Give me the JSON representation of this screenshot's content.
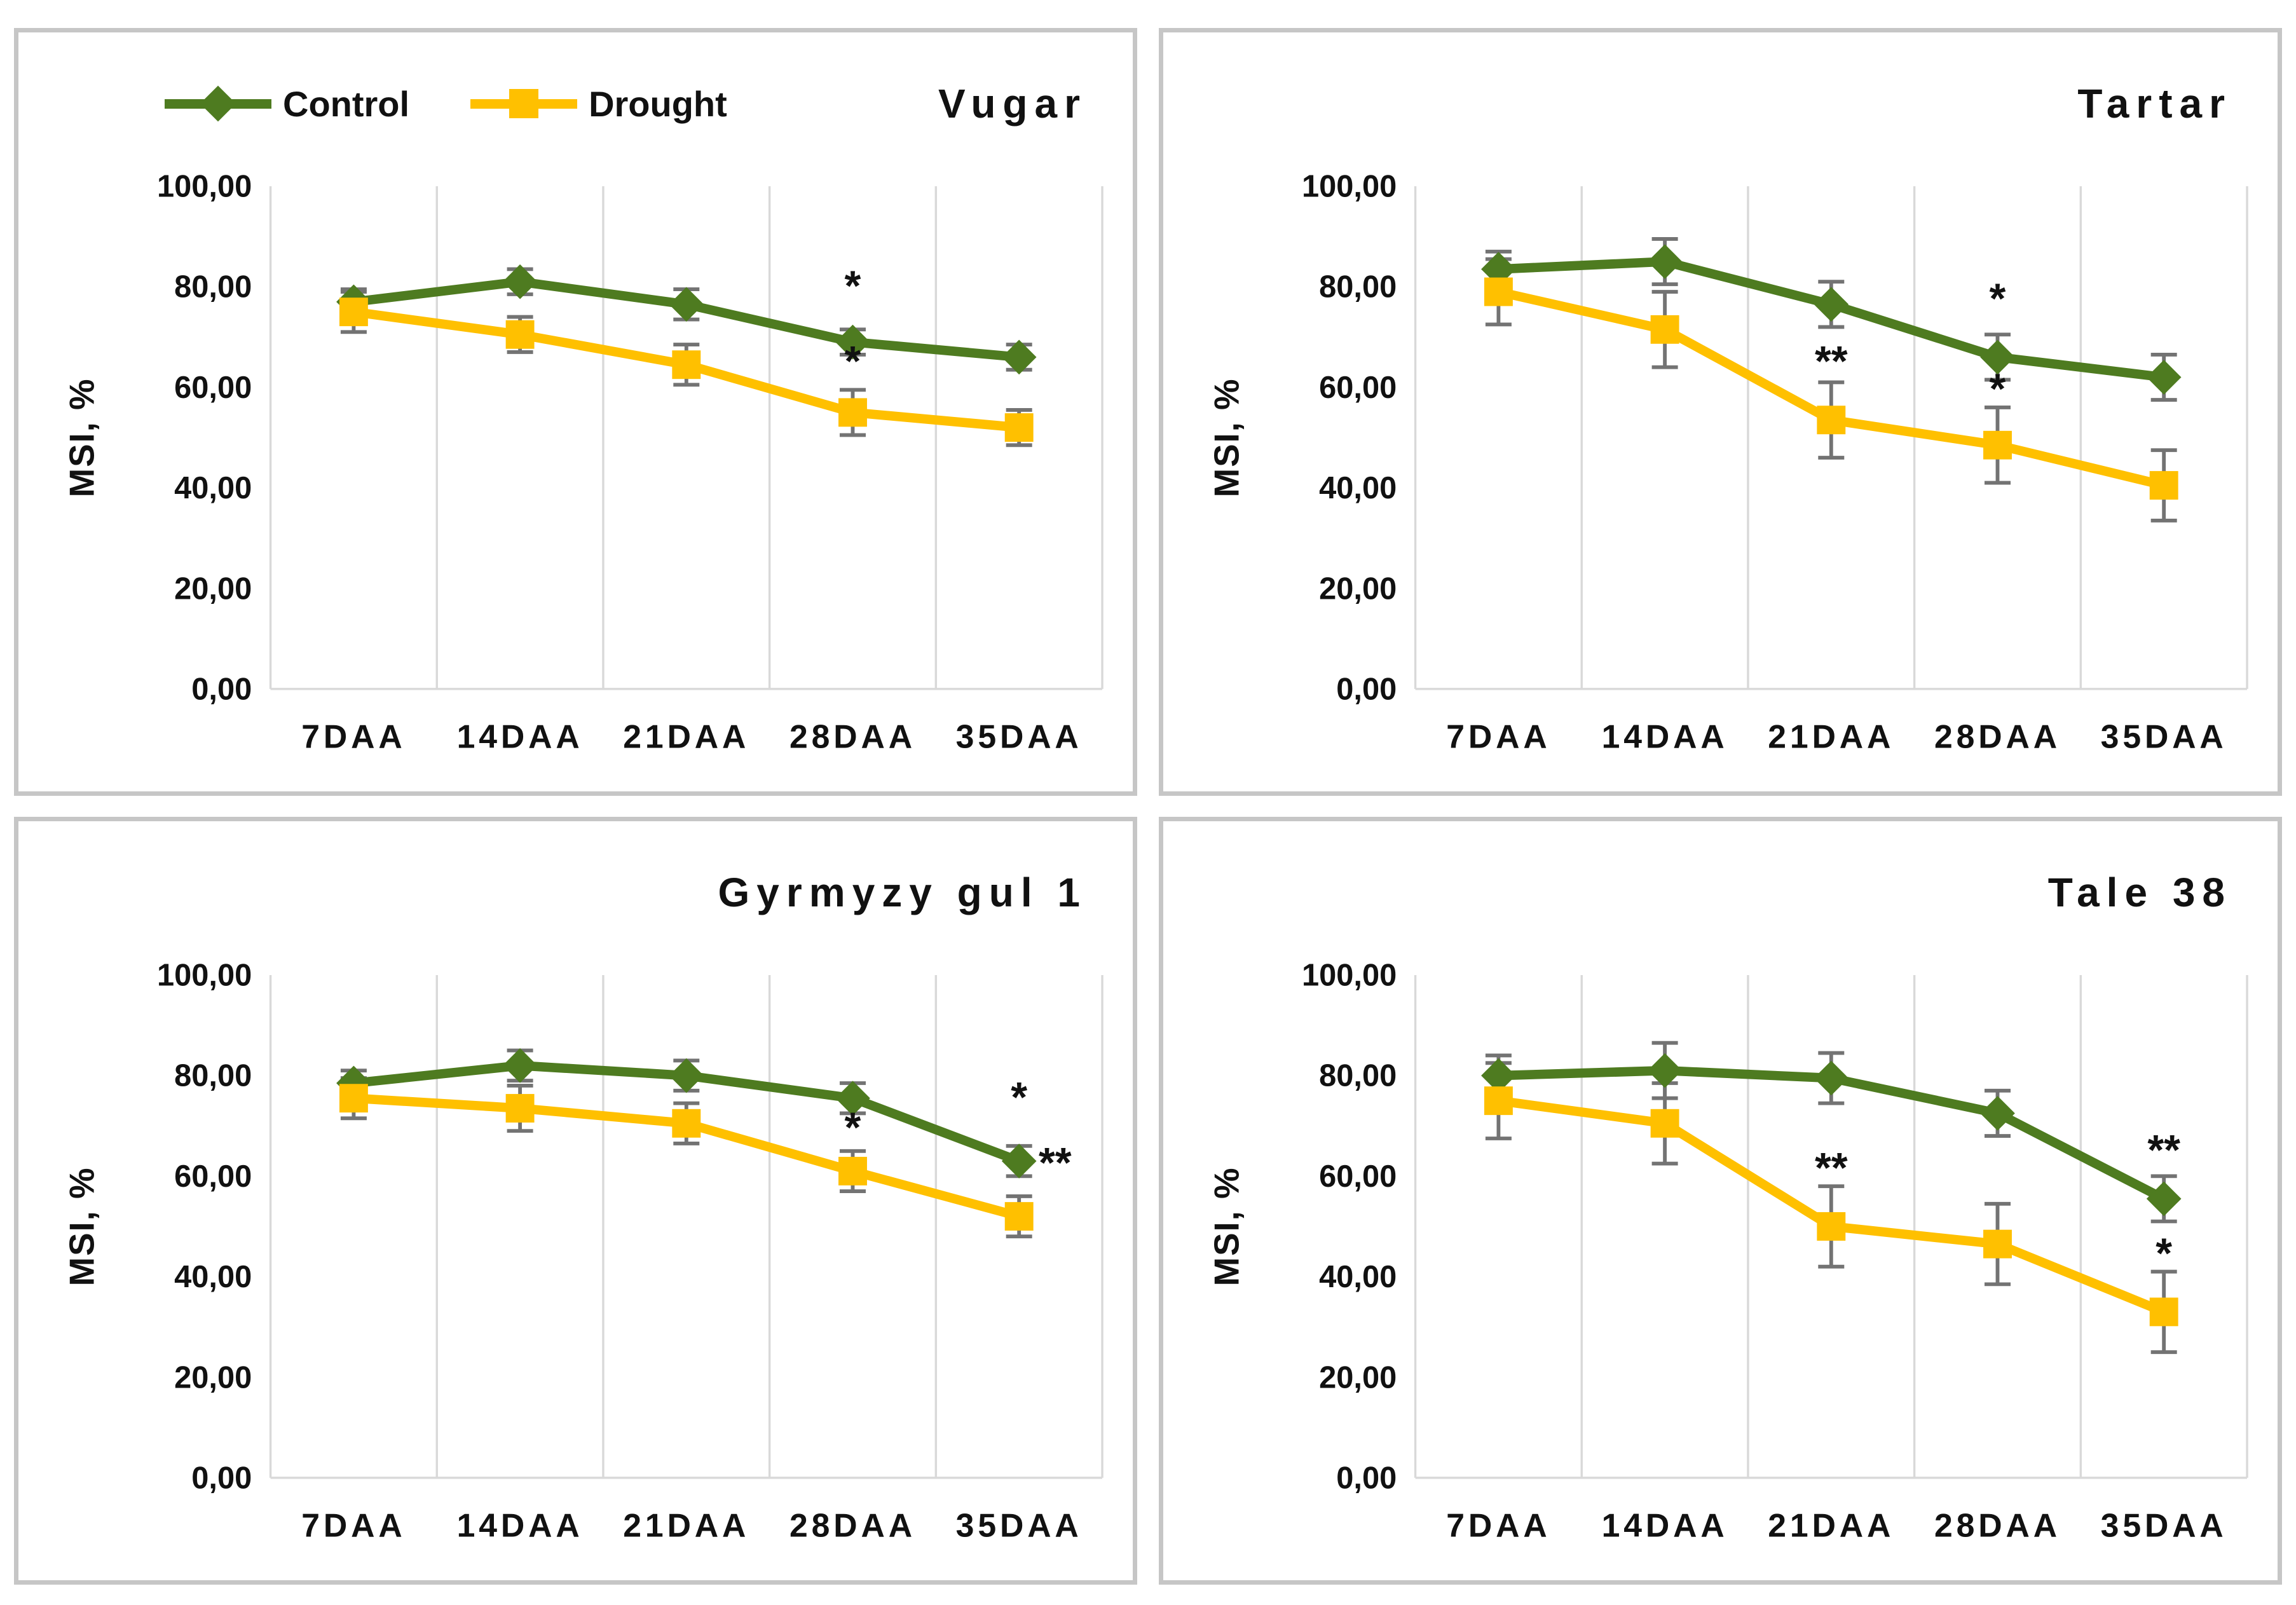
{
  "figure": {
    "background": "#ffffff",
    "panel_border_color": "#c6c6c6"
  },
  "colors": {
    "control": "#4e7b20",
    "drought": "#ffc000",
    "error_bar": "#737373",
    "gridline": "#d9d9d9",
    "text": "#111111"
  },
  "legend": {
    "items": [
      {
        "label": "Control",
        "marker": "diamond",
        "color": "#4e7b20"
      },
      {
        "label": "Drought",
        "marker": "square",
        "color": "#ffc000"
      }
    ]
  },
  "axis": {
    "y_label": "MSI, %",
    "y_tick_values": [
      0,
      20,
      40,
      60,
      80,
      100
    ],
    "y_tick_labels": [
      "0,00",
      "20,00",
      "40,00",
      "60,00",
      "80,00",
      "100,00"
    ],
    "x_categories": [
      "7DAA",
      "14DAA",
      "21DAA",
      "28DAA",
      "35DAA"
    ],
    "ylim": [
      0,
      100
    ],
    "grid": "vertical-only",
    "legend_position": "top-left-first-panel-only"
  },
  "chart_data": [
    {
      "type": "line",
      "title": "Vugar",
      "categories": [
        "7DAA",
        "14DAA",
        "21DAA",
        "28DAA",
        "35DAA"
      ],
      "ylim": [
        0,
        100
      ],
      "series": [
        {
          "name": "Control",
          "marker": "diamond",
          "color": "#4e7b20",
          "values": [
            77,
            81,
            76.5,
            69,
            66
          ],
          "errors": [
            2.5,
            2.5,
            3,
            2.5,
            2.5
          ]
        },
        {
          "name": "Drought",
          "marker": "square",
          "color": "#ffc000",
          "values": [
            75,
            70.5,
            64.5,
            55,
            52
          ],
          "errors": [
            4,
            3.5,
            4,
            4.5,
            3.5
          ]
        }
      ],
      "annotations": [
        {
          "x_index": 3,
          "y": 80.5,
          "text": "*",
          "dx": 0
        },
        {
          "x_index": 3,
          "y": 65.5,
          "text": "*",
          "dx": 0
        }
      ]
    },
    {
      "type": "line",
      "title": "Tartar",
      "categories": [
        "7DAA",
        "14DAA",
        "21DAA",
        "28DAA",
        "35DAA"
      ],
      "ylim": [
        0,
        100
      ],
      "series": [
        {
          "name": "Control",
          "marker": "diamond",
          "color": "#4e7b20",
          "values": [
            83.5,
            85,
            76.5,
            66,
            62
          ],
          "errors": [
            3.5,
            4.5,
            4.5,
            4.5,
            4.5
          ]
        },
        {
          "name": "Drought",
          "marker": "square",
          "color": "#ffc000",
          "values": [
            79,
            71.5,
            53.5,
            48.5,
            40.5
          ],
          "errors": [
            6.5,
            7.5,
            7.5,
            7.5,
            7
          ]
        }
      ],
      "annotations": [
        {
          "x_index": 2,
          "y": 65.5,
          "text": "**",
          "dx": 0
        },
        {
          "x_index": 3,
          "y": 78,
          "text": "*",
          "dx": 0
        },
        {
          "x_index": 3,
          "y": 60,
          "text": "*",
          "dx": 0
        }
      ]
    },
    {
      "type": "line",
      "title": "Gyrmyzy gul 1",
      "categories": [
        "7DAA",
        "14DAA",
        "21DAA",
        "28DAA",
        "35DAA"
      ],
      "ylim": [
        0,
        100
      ],
      "series": [
        {
          "name": "Control",
          "marker": "diamond",
          "color": "#4e7b20",
          "values": [
            78.5,
            82,
            80,
            75.5,
            63
          ],
          "errors": [
            2.5,
            3,
            3,
            3,
            3
          ]
        },
        {
          "name": "Drought",
          "marker": "square",
          "color": "#ffc000",
          "values": [
            75.5,
            73.5,
            70.5,
            61,
            52
          ],
          "errors": [
            4,
            4.5,
            4,
            4,
            4
          ]
        }
      ],
      "annotations": [
        {
          "x_index": 3,
          "y": 70,
          "text": "*",
          "dx": 0
        },
        {
          "x_index": 4,
          "y": 76,
          "text": "*",
          "dx": 0
        },
        {
          "x_index": 4,
          "y": 63,
          "text": "**",
          "dx": 58
        }
      ]
    },
    {
      "type": "line",
      "title": "Tale 38",
      "categories": [
        "7DAA",
        "14DAA",
        "21DAA",
        "28DAA",
        "35DAA"
      ],
      "ylim": [
        0,
        100
      ],
      "series": [
        {
          "name": "Control",
          "marker": "diamond",
          "color": "#4e7b20",
          "values": [
            80,
            81,
            79.5,
            72.5,
            55.5
          ],
          "errors": [
            4,
            5.5,
            5,
            4.5,
            4.5
          ]
        },
        {
          "name": "Drought",
          "marker": "square",
          "color": "#ffc000",
          "values": [
            75,
            70.5,
            50,
            46.5,
            33
          ],
          "errors": [
            7.5,
            8,
            8,
            8,
            8
          ]
        }
      ],
      "annotations": [
        {
          "x_index": 2,
          "y": 62,
          "text": "**",
          "dx": 0
        },
        {
          "x_index": 4,
          "y": 65.5,
          "text": "**",
          "dx": 0
        },
        {
          "x_index": 4,
          "y": 45,
          "text": "*",
          "dx": 0
        }
      ]
    }
  ]
}
